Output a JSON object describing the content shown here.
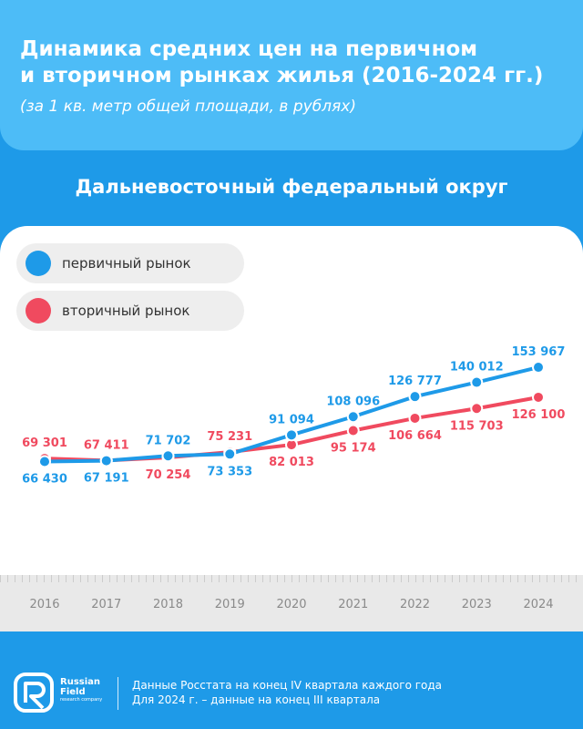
{
  "header": {
    "title_line1": "Динамика средних цен на первичном",
    "title_line2": "и вторичном рынках жилья (2016-2024 гг.)",
    "subtitle": "(за 1 кв. метр общей площади, в рублях)"
  },
  "region": "Дальневосточный федеральный округ",
  "legend": {
    "primary": "первичный рынок",
    "secondary": "вторичный рынок"
  },
  "colors": {
    "primary": "#1e9ae8",
    "secondary": "#f04a5f",
    "background": "#1e9ae8",
    "header": "#4dbcf7"
  },
  "chart_data": {
    "type": "line",
    "categories": [
      "2016",
      "2017",
      "2018",
      "2019",
      "2020",
      "2021",
      "2022",
      "2023",
      "2024"
    ],
    "series": [
      {
        "name": "первичный рынок",
        "color": "#1e9ae8",
        "values": [
          66430,
          67191,
          71702,
          73353,
          91094,
          108096,
          126777,
          140012,
          153967
        ],
        "labels": [
          "66 430",
          "67 191",
          "71 702",
          "73 353",
          "91 094",
          "108 096",
          "126 777",
          "140 012",
          "153 967"
        ],
        "label_pos": [
          "below",
          "below",
          "above",
          "below",
          "above",
          "above",
          "above",
          "above",
          "above"
        ]
      },
      {
        "name": "вторичный рынок",
        "color": "#f04a5f",
        "values": [
          69301,
          67411,
          70254,
          75231,
          82013,
          95174,
          106664,
          115703,
          126100
        ],
        "labels": [
          "69 301",
          "67 411",
          "70 254",
          "75 231",
          "82 013",
          "95 174",
          "106 664",
          "115 703",
          "126 100"
        ],
        "label_pos": [
          "above",
          "above",
          "below",
          "above",
          "below",
          "below",
          "below",
          "below",
          "below"
        ]
      }
    ],
    "grid": false,
    "legend_position": "top-left"
  },
  "footer": {
    "brand_line1": "Russian",
    "brand_line2": "Field",
    "brand_line3": "research company",
    "note_line1": "Данные Росстата на конец IV квартала каждого года",
    "note_line2": "Для 2024 г. – данные на конец III квартала"
  }
}
